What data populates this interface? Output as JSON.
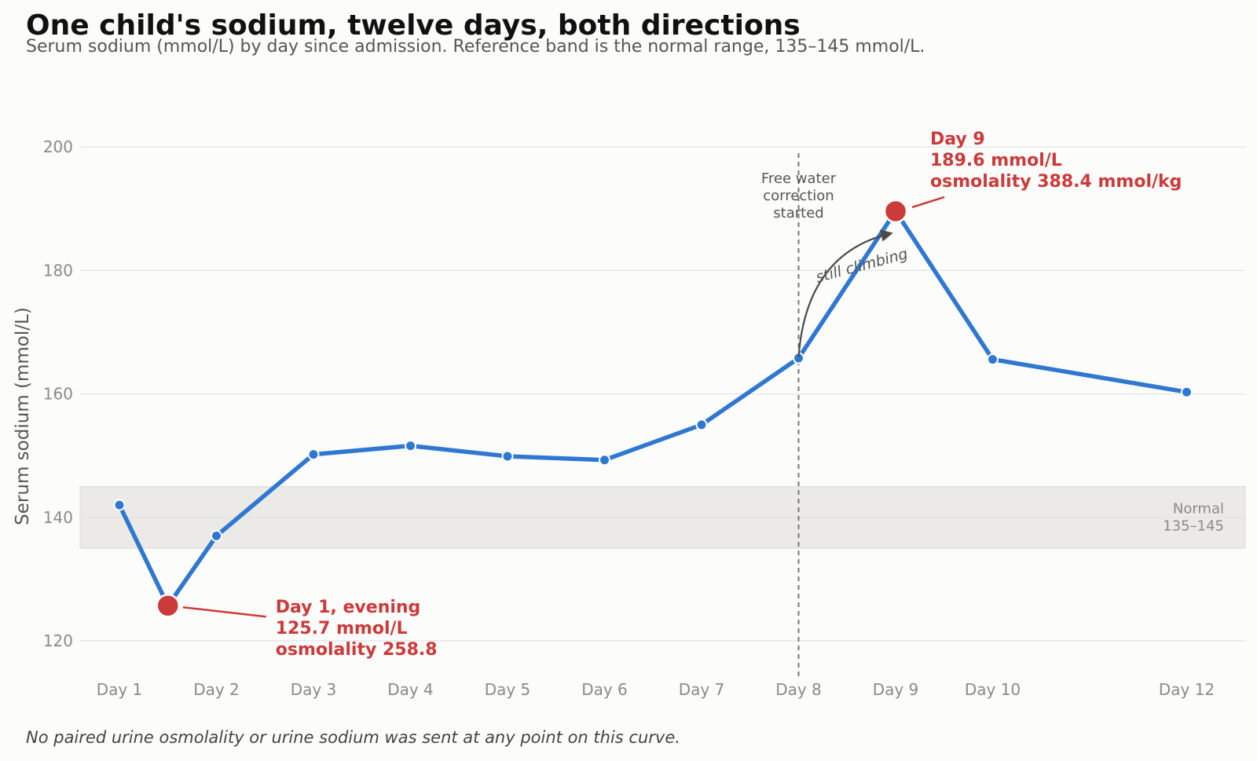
{
  "chart_data": {
    "type": "line",
    "title": "One child's sodium, twelve days, both directions",
    "subtitle": "Serum sodium (mmol/L) by day since admission. Reference band is the normal range, 135–145 mmol/L.",
    "ylabel": "Serum sodium (mmol/L)",
    "xlabel": "",
    "xlim": [
      0.6,
      12.6
    ],
    "ylim": [
      116,
      206
    ],
    "x_ticks": [
      {
        "x": 1,
        "label": "Day 1"
      },
      {
        "x": 2,
        "label": "Day 2"
      },
      {
        "x": 3,
        "label": "Day 3"
      },
      {
        "x": 4,
        "label": "Day 4"
      },
      {
        "x": 5,
        "label": "Day 5"
      },
      {
        "x": 6,
        "label": "Day 6"
      },
      {
        "x": 7,
        "label": "Day 7"
      },
      {
        "x": 8,
        "label": "Day 8"
      },
      {
        "x": 9,
        "label": "Day 9"
      },
      {
        "x": 10,
        "label": "Day 10"
      },
      {
        "x": 12,
        "label": "Day 12"
      }
    ],
    "y_ticks": [
      120,
      140,
      160,
      180,
      200
    ],
    "grid": "horizontal",
    "line_color": "#2f78d1",
    "highlight_color": "#cc3a3a",
    "reference_band": {
      "y0": 135,
      "y1": 145,
      "label_lines": [
        "Normal",
        "135–145"
      ],
      "color": "#ebeae6"
    },
    "series": [
      {
        "x": [
          1,
          1.5,
          2,
          3,
          4,
          5,
          6,
          7,
          8,
          9,
          10,
          12
        ],
        "y": [
          142.0,
          125.7,
          137.0,
          150.2,
          151.6,
          149.9,
          149.3,
          155.0,
          165.8,
          189.6,
          165.6,
          160.3
        ]
      }
    ],
    "event_line": {
      "x": 8,
      "label_lines": [
        "Free water",
        "correction",
        "started"
      ]
    },
    "trend_annotation": {
      "text": "still climbing",
      "from": {
        "x": 8,
        "y": 166
      },
      "to": {
        "x": 8.95,
        "y": 186
      }
    },
    "callouts": [
      {
        "point": {
          "x": 1.5,
          "y": 125.7
        },
        "lines": [
          "Day 1, evening",
          "125.7 mmol/L",
          "osmolality 258.8"
        ]
      },
      {
        "point": {
          "x": 9,
          "y": 189.6
        },
        "lines": [
          "Day 9",
          "189.6 mmol/L",
          "osmolality 388.4 mmol/kg"
        ]
      }
    ],
    "footnote": "No paired urine osmolality or urine sodium was sent at any point on this curve."
  }
}
